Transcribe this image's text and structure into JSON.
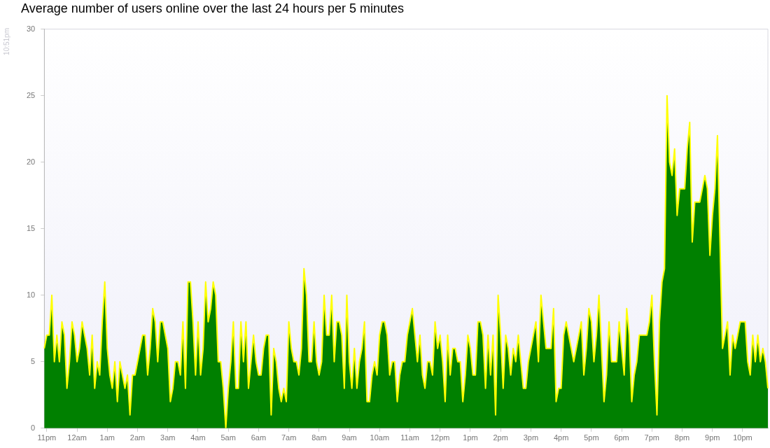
{
  "chart_data": {
    "type": "area",
    "title": "Average number of users online over the last 24 hours per 5 minutes",
    "annotations": [
      "10:51pm"
    ],
    "categories": [
      null,
      "11pm",
      null,
      null,
      null,
      null,
      null,
      null,
      null,
      null,
      null,
      null,
      null,
      "12am",
      null,
      null,
      null,
      null,
      null,
      null,
      null,
      null,
      null,
      null,
      null,
      "1am",
      null,
      null,
      null,
      null,
      null,
      null,
      null,
      null,
      null,
      null,
      null,
      "2am",
      null,
      null,
      null,
      null,
      null,
      null,
      null,
      null,
      null,
      null,
      null,
      "3am",
      null,
      null,
      null,
      null,
      null,
      null,
      null,
      null,
      null,
      null,
      null,
      "4am",
      null,
      null,
      null,
      null,
      null,
      null,
      null,
      null,
      null,
      null,
      null,
      "5am",
      null,
      null,
      null,
      null,
      null,
      null,
      null,
      null,
      null,
      null,
      null,
      "6am",
      null,
      null,
      null,
      null,
      null,
      null,
      null,
      null,
      null,
      null,
      null,
      "7am",
      null,
      null,
      null,
      null,
      null,
      null,
      null,
      null,
      null,
      null,
      null,
      "8am",
      null,
      null,
      null,
      null,
      null,
      null,
      null,
      null,
      null,
      null,
      null,
      "9am",
      null,
      null,
      null,
      null,
      null,
      null,
      null,
      null,
      null,
      null,
      null,
      "10am",
      null,
      null,
      null,
      null,
      null,
      null,
      null,
      null,
      null,
      null,
      null,
      "11am",
      null,
      null,
      null,
      null,
      null,
      null,
      null,
      null,
      null,
      null,
      null,
      "12pm",
      null,
      null,
      null,
      null,
      null,
      null,
      null,
      null,
      null,
      null,
      null,
      "1pm",
      null,
      null,
      null,
      null,
      null,
      null,
      null,
      null,
      null,
      null,
      null,
      "2pm",
      null,
      null,
      null,
      null,
      null,
      null,
      null,
      null,
      null,
      null,
      null,
      "3pm",
      null,
      null,
      null,
      null,
      null,
      null,
      null,
      null,
      null,
      null,
      null,
      "4pm",
      null,
      null,
      null,
      null,
      null,
      null,
      null,
      null,
      null,
      null,
      null,
      "5pm",
      null,
      null,
      null,
      null,
      null,
      null,
      null,
      null,
      null,
      null,
      null,
      "6pm",
      null,
      null,
      null,
      null,
      null,
      null,
      null,
      null,
      null,
      null,
      null,
      "7pm",
      null,
      null,
      null,
      null,
      null,
      null,
      null,
      null,
      null,
      null,
      null,
      "8pm",
      null,
      null,
      null,
      null,
      null,
      null,
      null,
      null,
      null,
      null,
      null,
      "9pm",
      null,
      null,
      null,
      null,
      null,
      null,
      null,
      null,
      null,
      null,
      null,
      "10pm",
      null,
      null,
      null,
      null,
      null,
      null,
      null,
      null,
      null,
      null
    ],
    "series": [
      {
        "color": "#008000",
        "values": [
          6,
          7,
          7,
          10,
          5,
          7,
          5,
          8,
          7,
          3,
          5,
          8,
          7,
          5,
          6,
          8,
          7,
          6,
          4,
          7,
          3,
          5,
          4,
          8,
          11,
          6,
          4,
          3,
          5,
          2,
          5,
          4,
          3,
          4,
          1,
          4,
          4,
          5,
          6,
          7,
          7,
          4,
          6,
          9,
          8,
          5,
          8,
          8,
          7,
          6,
          2,
          3,
          5,
          5,
          4,
          8,
          3,
          11,
          11,
          8,
          4,
          8,
          4,
          6,
          11,
          8,
          9,
          11,
          10,
          5,
          5,
          3,
          0,
          3,
          5,
          8,
          3,
          3,
          8,
          5,
          8,
          3,
          5,
          7,
          5,
          4,
          4,
          6,
          7,
          7,
          1,
          6,
          5,
          3,
          2,
          3,
          2,
          8,
          6,
          5,
          5,
          4,
          6,
          12,
          10,
          5,
          5,
          8,
          5,
          4,
          5,
          10,
          7,
          7,
          10,
          5,
          8,
          8,
          7,
          3,
          10,
          5,
          3,
          6,
          3,
          5,
          6,
          8,
          2,
          2,
          4,
          5,
          4,
          7,
          8,
          8,
          7,
          4,
          5,
          5,
          2,
          4,
          5,
          5,
          7,
          8,
          9,
          7,
          5,
          7,
          4,
          3,
          5,
          5,
          4,
          8,
          6,
          7,
          5,
          2,
          7,
          4,
          6,
          6,
          5,
          5,
          2,
          4,
          7,
          6,
          4,
          4,
          8,
          8,
          7,
          3,
          7,
          4,
          7,
          1,
          10,
          7,
          3,
          7,
          6,
          4,
          6,
          5,
          7,
          5,
          3,
          3,
          5,
          6,
          7,
          8,
          5,
          10,
          8,
          6,
          6,
          6,
          9,
          2,
          3,
          3,
          7,
          8,
          7,
          6,
          5,
          6,
          7,
          8,
          4,
          6,
          9,
          8,
          5,
          7,
          10,
          6,
          2,
          4,
          8,
          5,
          5,
          5,
          8,
          6,
          4,
          9,
          7,
          2,
          4,
          5,
          7,
          7,
          7,
          7,
          8,
          10,
          5,
          1,
          8,
          11,
          12,
          25,
          20,
          19,
          21,
          16,
          18,
          18,
          18,
          21,
          23,
          14,
          17,
          17,
          17,
          18,
          19,
          18,
          13,
          16,
          18,
          22,
          14,
          6,
          7,
          8,
          4,
          7,
          6,
          7,
          8,
          8,
          8,
          5,
          4,
          7,
          5,
          7,
          5,
          6,
          5,
          3
        ]
      }
    ],
    "ylim": [
      0,
      30
    ],
    "yticks": [
      0,
      5,
      10,
      15,
      20,
      25,
      30
    ],
    "marker": "none",
    "legend": false
  }
}
